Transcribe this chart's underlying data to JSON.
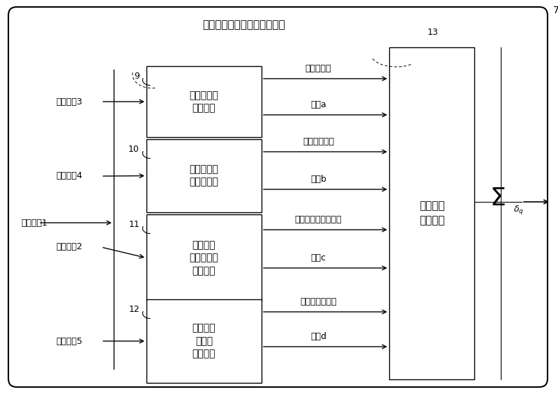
{
  "outer_label": "7",
  "title": "估计误差协方差矩阵处理单元",
  "pu_labels": [
    "四阶累积量\n处理单元",
    "双二阶累积\n量处理单元",
    "二阶噪声\n混合累积量\n处理单元",
    "四阶噪声\n累积量\n处理单元"
  ],
  "pu_numbers": [
    "9",
    "10",
    "11",
    "12"
  ],
  "output_label": "周期分块\n处理单元",
  "output_number": "13",
  "input_labels": [
    "输入参数3",
    "输入参数4",
    "输入参数1",
    "输入参数2",
    "输入参数5"
  ],
  "top_arrow_labels": [
    "四阶累积量",
    "双二阶累积量",
    "二阶噪声混合累积量",
    "四阶噪声累积量"
  ],
  "bot_arrow_labels": [
    "索引a",
    "索引b",
    "索引c",
    "索引d"
  ],
  "bg_color": "#ffffff"
}
